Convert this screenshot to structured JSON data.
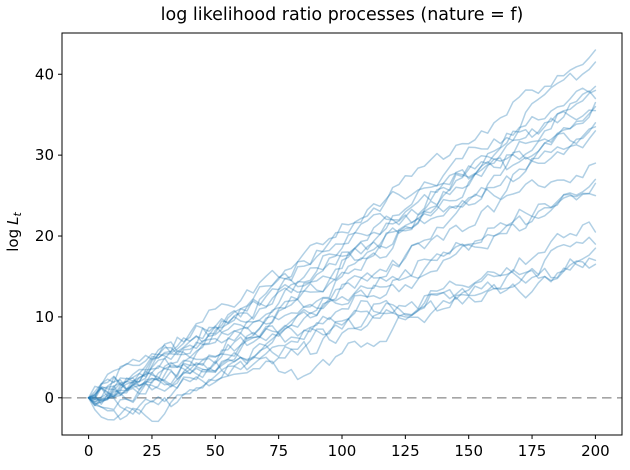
{
  "figure": {
    "background": "#ffffff"
  },
  "chart_data": {
    "type": "line",
    "title": "log likelihood ratio processes (nature = f)",
    "xlabel": "",
    "ylabel": {
      "prefix": "log",
      "var": "L",
      "sub": "t"
    },
    "xlim": [
      -10.5,
      210.5
    ],
    "ylim": [
      -4.6,
      45.1
    ],
    "xticks": [
      0,
      25,
      50,
      75,
      100,
      125,
      150,
      175,
      200
    ],
    "yticks": [
      0,
      10,
      20,
      30,
      40
    ],
    "grid": false,
    "legend": null,
    "line_color": "#1f77b4",
    "line_opacity": 0.35,
    "line_width": 1.5,
    "zero_line": {
      "y": 0,
      "style": "dashed",
      "color": "#a5a5a5"
    },
    "t_start": 0,
    "t_step": 20,
    "t_end": 200,
    "jitter_amp": 0.55,
    "series": [
      {
        "seed": 11,
        "values": [
          0,
          3.5,
          7.5,
          11,
          16,
          20.5,
          26,
          29.5,
          34,
          38.5,
          43
        ]
      },
      {
        "seed": 12,
        "values": [
          0,
          2,
          5,
          9.5,
          14.5,
          19,
          22.5,
          27.5,
          32,
          37.5,
          41.5
        ]
      },
      {
        "seed": 13,
        "values": [
          0,
          4,
          7,
          10.5,
          13,
          17.5,
          22,
          26.5,
          30.5,
          34.5,
          38.5
        ]
      },
      {
        "seed": 14,
        "values": [
          0,
          1.5,
          6,
          9,
          14,
          18,
          21,
          25,
          30,
          34,
          38
        ]
      },
      {
        "seed": 15,
        "values": [
          0,
          3,
          5.5,
          10,
          13.5,
          16,
          20.5,
          25.5,
          29,
          33.5,
          37
        ]
      },
      {
        "seed": 16,
        "values": [
          0,
          2.5,
          6.5,
          8.5,
          12.5,
          17,
          21.5,
          24.5,
          28.5,
          32,
          36.5
        ]
      },
      {
        "seed": 17,
        "values": [
          0,
          1,
          4,
          8,
          11.5,
          15.5,
          18.5,
          23,
          27.5,
          31.5,
          36
        ]
      },
      {
        "seed": 18,
        "values": [
          0,
          4.5,
          8,
          12,
          15,
          21.5,
          25.5,
          26.5,
          29.5,
          33,
          35.5
        ]
      },
      {
        "seed": 19,
        "values": [
          0,
          2,
          4.5,
          7.5,
          12,
          15,
          19,
          22.5,
          26,
          30.5,
          34
        ]
      },
      {
        "seed": 20,
        "values": [
          0,
          3,
          7,
          11,
          14.5,
          18.5,
          22,
          26,
          29.5,
          31.5,
          33.5
        ]
      },
      {
        "seed": 21,
        "values": [
          0,
          0.5,
          3.5,
          6.5,
          9.5,
          13.5,
          17,
          21,
          25,
          29,
          33
        ]
      },
      {
        "seed": 22,
        "values": [
          0,
          2.5,
          5,
          8,
          10.5,
          14,
          16.5,
          19.5,
          23,
          26,
          29
        ]
      },
      {
        "seed": 23,
        "values": [
          0,
          1.5,
          3,
          6,
          9,
          12.5,
          15,
          18,
          21,
          24,
          27
        ]
      },
      {
        "seed": 24,
        "values": [
          0,
          -1,
          2,
          5,
          8.5,
          11,
          14.5,
          17,
          20,
          23.5,
          26.5
        ]
      },
      {
        "seed": 25,
        "values": [
          0,
          2,
          4,
          6.5,
          9,
          11.5,
          14,
          17.5,
          20,
          22.5,
          25
        ]
      },
      {
        "seed": 26,
        "values": [
          0,
          -1.5,
          1,
          3.5,
          6,
          8,
          10.5,
          13,
          15,
          18,
          20.5
        ]
      },
      {
        "seed": 27,
        "values": [
          0,
          1,
          3,
          5,
          7.5,
          9.5,
          11,
          13.5,
          15.5,
          17,
          19
        ]
      },
      {
        "seed": 28,
        "values": [
          0,
          -2,
          0.5,
          3,
          3.5,
          5.5,
          8.5,
          11,
          13.5,
          16,
          18.5
        ]
      },
      {
        "seed": 29,
        "values": [
          0,
          0.5,
          2.5,
          4.5,
          6,
          8.5,
          10.5,
          12,
          13.5,
          15,
          17
        ]
      },
      {
        "seed": 30,
        "values": [
          0,
          1.5,
          3.5,
          5,
          7,
          9,
          11.5,
          13,
          14,
          15,
          16.5
        ]
      }
    ]
  }
}
